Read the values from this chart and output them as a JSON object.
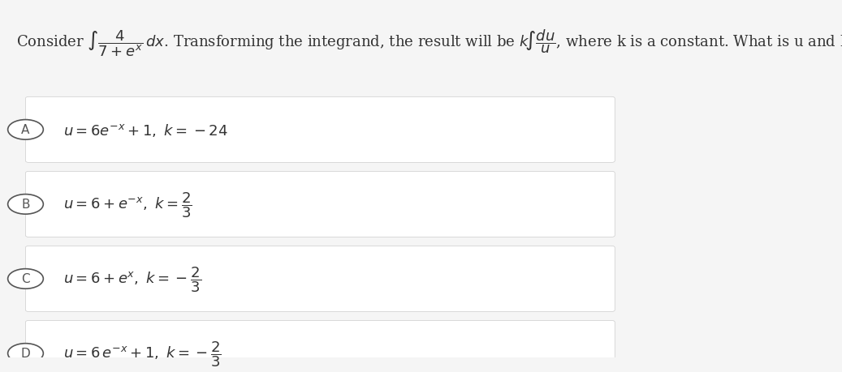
{
  "bg_color": "#f5f5f5",
  "white": "#ffffff",
  "text_color": "#333333",
  "circle_color": "#555555",
  "question_text": "Consider $\\int \\dfrac{4}{7+e^{x}}\\,dx$. Transforming the integrand, the result will be $k\\int \\dfrac{du}{u}$, where k is a constant. What is u and k?",
  "options": [
    {
      "label": "A",
      "text": "$u = 6e^{-x}+1,\\ k = -24$"
    },
    {
      "label": "B",
      "text": "$u = 6+e^{-x},\\ k = \\dfrac{2}{3}$"
    },
    {
      "label": "C",
      "text": "$u = 6+e^{x},\\ k = -\\dfrac{2}{3}$"
    },
    {
      "label": "D",
      "text": "$u = 6e^{-x}+1,\\ k = -\\dfrac{2}{3}$"
    }
  ],
  "figsize": [
    10.37,
    4.6
  ],
  "dpi": 100
}
